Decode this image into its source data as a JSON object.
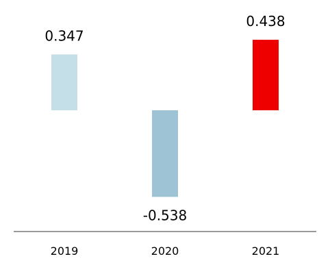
{
  "chart_data": {
    "type": "bar",
    "title": "",
    "xlabel": "",
    "ylabel": "",
    "categories": [
      "2019",
      "2020",
      "2021"
    ],
    "values": [
      0.347,
      -0.538,
      0.438
    ],
    "value_labels": [
      "0.347",
      "-0.538",
      "0.438"
    ],
    "bar_colors": [
      "#c5dfe8",
      "#9dc3d4",
      "#ee0000"
    ],
    "axis_color": "#999999",
    "ylim": [
      -0.75,
      0.75
    ],
    "grid": false,
    "legend": "none",
    "yaxis_visible": false
  }
}
